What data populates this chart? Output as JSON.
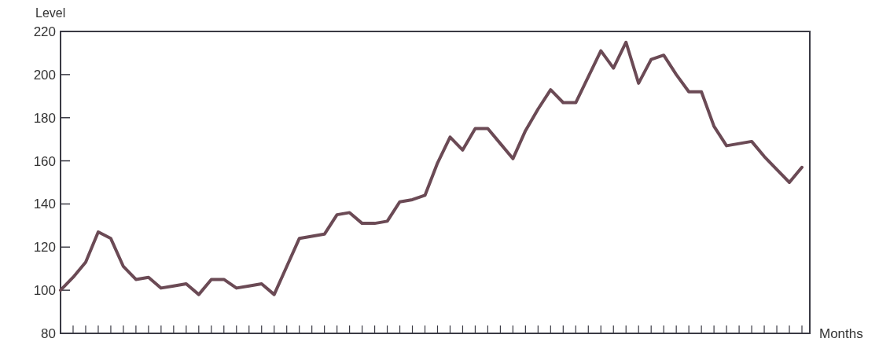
{
  "chart_data": {
    "type": "line",
    "ylabel": "Level",
    "xlabel": "Months",
    "categories": [
      null,
      null,
      null,
      null,
      null,
      null,
      null,
      null,
      null,
      null,
      null,
      null,
      null,
      null,
      null,
      null,
      null,
      null,
      null,
      null,
      null,
      null,
      null,
      null,
      null,
      null,
      null,
      null,
      null,
      null,
      null,
      null,
      null,
      null,
      null,
      null,
      null,
      null,
      null,
      null,
      null,
      null,
      null,
      null,
      null,
      null,
      null,
      null,
      null,
      null,
      null,
      null,
      null,
      null,
      null,
      null,
      null,
      null,
      null,
      null
    ],
    "series": [
      {
        "color": "#6b4a55",
        "values": [
          100,
          106,
          113,
          127,
          124,
          111,
          105,
          106,
          101,
          102,
          103,
          98,
          105,
          105,
          101,
          102,
          103,
          98,
          111,
          124,
          125,
          126,
          135,
          136,
          131,
          131,
          132,
          141,
          142,
          144,
          159,
          171,
          165,
          175,
          175,
          168,
          161,
          174,
          184,
          193,
          187,
          187,
          199,
          211,
          203,
          215,
          196,
          207,
          209,
          200,
          192,
          192,
          176,
          167,
          168,
          169,
          162,
          156,
          150,
          157
        ]
      }
    ],
    "ylim": [
      80,
      220
    ],
    "yticks": [
      80,
      100,
      120,
      140,
      160,
      180,
      200,
      220
    ],
    "grid": false,
    "marker": "none",
    "line_style": "solid"
  }
}
